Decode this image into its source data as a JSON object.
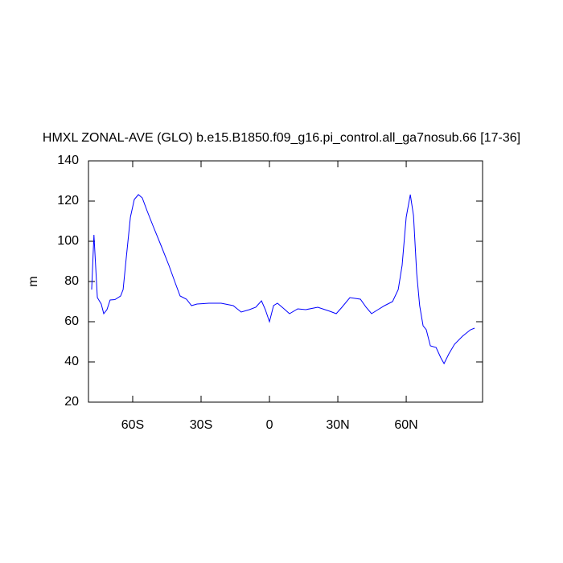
{
  "chart_data": {
    "type": "line",
    "title": "HMXL ZONAL-AVE (GLO) b.e15.B1850.f09_g16.pi_control.all_ga7nosub.66 [17-36]",
    "y_label": "m",
    "xlim": [
      -79.4,
      93.5
    ],
    "ylim": [
      20,
      140
    ],
    "xticks": [
      {
        "value": -60,
        "label": "60S"
      },
      {
        "value": -30,
        "label": "30S"
      },
      0,
      {
        "value": 30,
        "label": "30N"
      },
      {
        "value": 60,
        "label": "60N"
      }
    ],
    "yticks": [
      20,
      40,
      60,
      80,
      100,
      120,
      140
    ],
    "series": [
      {
        "color": "#0000ff",
        "x": [
          -78,
          -77,
          -75.5,
          -73.8,
          -72.7,
          -71.3,
          -69.9,
          -67.8,
          -65.3,
          -64.2,
          -62.8,
          -61,
          -59.3,
          -57.5,
          -55.8,
          -53.7,
          -51.2,
          -47.6,
          -44.1,
          -41.3,
          -39.2,
          -36.4,
          -34.2,
          -31.8,
          -26.5,
          -21.2,
          -15.9,
          -12.4,
          -8.8,
          -6,
          -3.5,
          -1.8,
          0,
          1.8,
          3.5,
          6,
          8.8,
          12.4,
          15.9,
          21.2,
          26.5,
          29.3,
          31.8,
          35.3,
          39.9,
          42.4,
          44.8,
          47.6,
          50.5,
          54,
          56.5,
          58.2,
          60,
          61.8,
          63.2,
          64.6,
          65.9,
          67.4,
          68.8,
          70.6,
          73.1,
          75.2,
          76.6,
          78.7,
          81.2,
          84.7,
          88.2,
          90
        ],
        "values": [
          76,
          103.2,
          72,
          68.8,
          64,
          66,
          70.8,
          71,
          72.8,
          76,
          92,
          112,
          120.8,
          123.2,
          121.6,
          115.2,
          108,
          98,
          88,
          79.2,
          72.8,
          71.2,
          68,
          68.8,
          69.2,
          69.2,
          68,
          64.8,
          66,
          67.2,
          70.4,
          66,
          60,
          68,
          69.2,
          66.8,
          64,
          66.4,
          66,
          67.2,
          65.2,
          64,
          67.2,
          72,
          71.2,
          67.2,
          64,
          66,
          68,
          70,
          76,
          88,
          112,
          123.2,
          112.8,
          84,
          68,
          58,
          56,
          48,
          47.2,
          42,
          39.2,
          44,
          48.8,
          52.8,
          56,
          56.8
        ]
      }
    ]
  }
}
